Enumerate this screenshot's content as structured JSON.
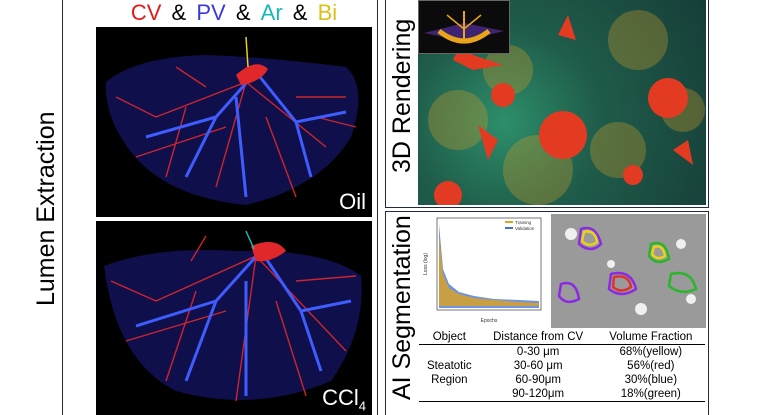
{
  "legend": {
    "cv": "CV",
    "pv": "PV",
    "ar": "Ar",
    "bi": "Bi",
    "sep": "&",
    "colors": {
      "cv": "#e01b1b",
      "pv": "#3a3adc",
      "ar": "#1bb7b7",
      "bi": "#e8d21b"
    }
  },
  "left_label": "Lumen Extraction",
  "top_right_label": "3D Rendering",
  "bottom_right_label": "AI Segmentation",
  "panel_oil_label": "Oil",
  "panel_ccl4_label": "CCl",
  "panel_ccl4_sub": "4",
  "table": {
    "headers": [
      "Object",
      "Distance from CV",
      "Volume Fraction"
    ],
    "object_lines": [
      "Steatotic",
      "Region"
    ],
    "rows": [
      {
        "distance": "0-30 μm",
        "fraction": "68%(yellow)"
      },
      {
        "distance": "30-60 μm",
        "fraction": "56%(red)"
      },
      {
        "distance": "60-90μm",
        "fraction": "30%(blue)"
      },
      {
        "distance": "90-120μm",
        "fraction": "18%(green)"
      }
    ]
  },
  "training_plot": {
    "legend": [
      "Training",
      "Validation"
    ],
    "xlabel": "Epochs",
    "ylabel": "Loss (log)"
  }
}
